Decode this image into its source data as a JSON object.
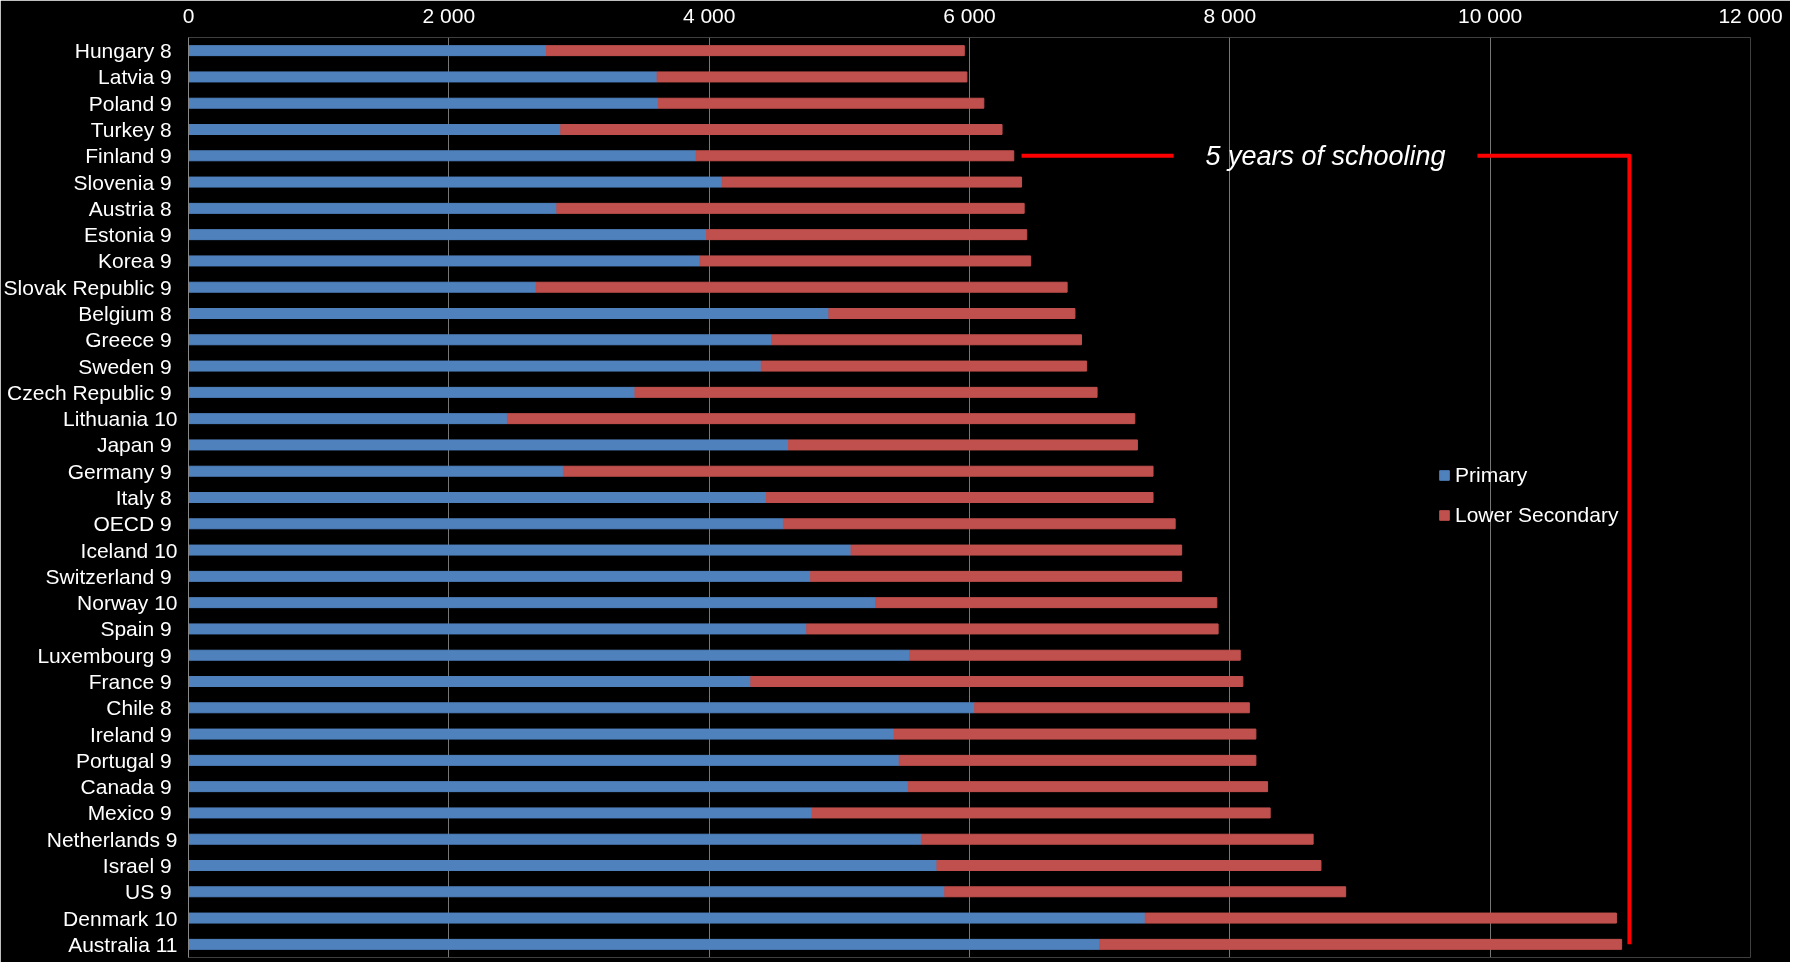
{
  "chart_data": {
    "type": "bar",
    "orientation": "horizontal",
    "stacked": true,
    "categories": [
      "Hungary  8",
      "Latvia  9",
      "Poland  9",
      "Turkey  8",
      "Finland  9",
      "Slovenia  9",
      "Austria  8",
      "Estonia  9",
      "Korea  9",
      "Slovak Republic  9",
      "Belgium  8",
      "Greece  9",
      "Sweden  9",
      "Czech Republic  9",
      "Lithuania 10",
      "Japan  9",
      "Germany  9",
      "Italy  8",
      "OECD  9",
      "Iceland 10",
      "Switzerland  9",
      "Norway 10",
      "Spain  9",
      "Luxembourg  9",
      "France  9",
      "Chile  8",
      "Ireland  9",
      "Portugal  9",
      "Canada  9",
      "Mexico  9",
      "Netherlands 9",
      "Israel  9",
      "US  9",
      "Denmark 10",
      "Australia 11"
    ],
    "series": [
      {
        "name": "Primary",
        "color": "#4f81bd",
        "values": [
          2750,
          3600,
          3610,
          2860,
          3900,
          4100,
          2830,
          3980,
          3930,
          2670,
          4920,
          4480,
          4400,
          3430,
          2450,
          4610,
          2880,
          4440,
          4570,
          5090,
          4780,
          5280,
          4750,
          5540,
          4320,
          6040,
          5420,
          5460,
          5530,
          4790,
          5630,
          5750,
          5810,
          7350,
          7000
        ]
      },
      {
        "name": "Lower Secondary",
        "color": "#c0504d",
        "values": [
          3210,
          2380,
          2500,
          3390,
          2440,
          2300,
          3590,
          2460,
          2540,
          4080,
          1890,
          2380,
          2500,
          3550,
          4820,
          2680,
          4530,
          2970,
          3010,
          2540,
          2850,
          2620,
          3160,
          2540,
          3780,
          2110,
          2780,
          2740,
          2760,
          3520,
          3010,
          2950,
          3080,
          3620,
          4010
        ]
      }
    ],
    "xlim": [
      0,
      12000
    ],
    "xticks": [
      {
        "value": 0,
        "label": "0"
      },
      {
        "value": 2000,
        "label": "2 000"
      },
      {
        "value": 4000,
        "label": "4 000"
      },
      {
        "value": 6000,
        "label": "6 000"
      },
      {
        "value": 8000,
        "label": "8 000"
      },
      {
        "value": 10000,
        "label": "10 000"
      },
      {
        "value": 12000,
        "label": "12 000"
      }
    ],
    "grid": "x",
    "legend": "right",
    "annotations": [
      "5 years of schooling"
    ]
  }
}
